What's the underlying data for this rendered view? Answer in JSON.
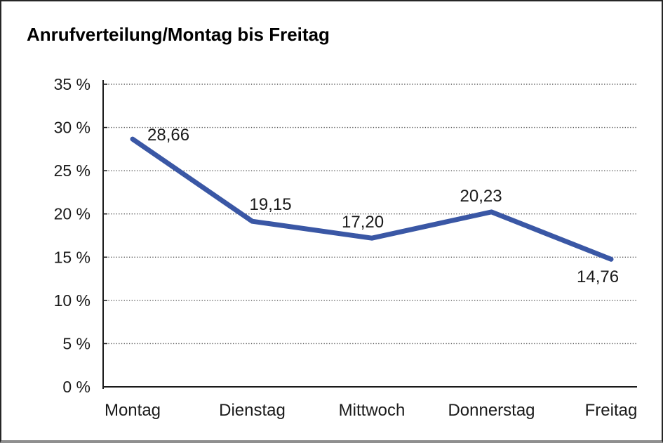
{
  "title": "Anrufverteilung/Montag bis Freitag",
  "chart_data": {
    "type": "line",
    "title": "Anrufverteilung/Montag bis Freitag",
    "categories": [
      "Montag",
      "Dienstag",
      "Mittwoch",
      "Donnerstag",
      "Freitag"
    ],
    "series": [
      {
        "name": "Anrufverteilung",
        "values": [
          28.66,
          19.15,
          17.2,
          20.23,
          14.76
        ],
        "point_labels": [
          "28,66",
          "19,15",
          "17,20",
          "20,23",
          "14,76"
        ]
      }
    ],
    "xlabel": "",
    "ylabel": "",
    "ylim": [
      0,
      35
    ],
    "ytick_step": 5,
    "ytick_labels": [
      "0 %",
      "5 %",
      "10 %",
      "15 %",
      "20 %",
      "25 %",
      "30 %",
      "35 %"
    ],
    "grid": "horizontal-dotted",
    "legend_position": "none",
    "colors": {
      "line": "#3A57A5",
      "axis": "#1a1a1a",
      "gridline": "#555555",
      "text": "#1a1a1a"
    }
  }
}
